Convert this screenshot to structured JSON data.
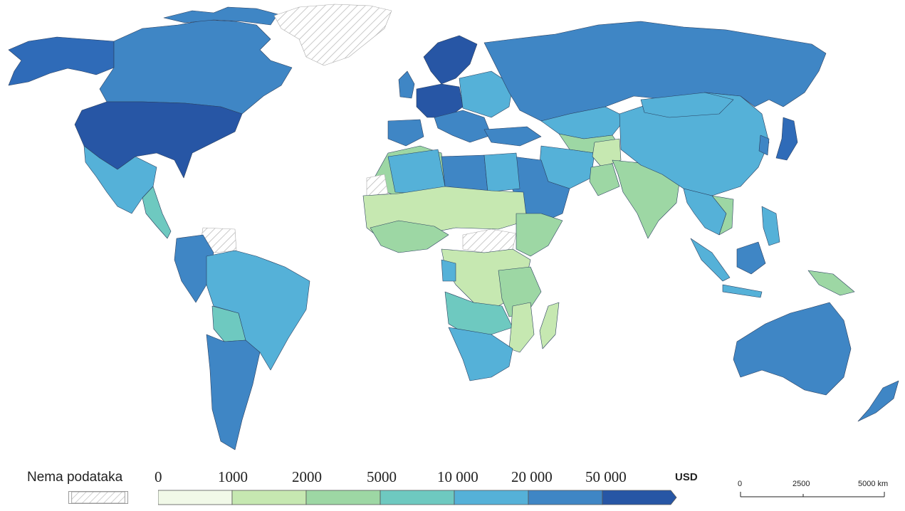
{
  "legend": {
    "nodata_label": "Nema podataka",
    "unit": "USD",
    "ticks": [
      "0",
      "1000",
      "2000",
      "5000",
      "10 000",
      "20 000",
      "50 000"
    ],
    "bins": [
      {
        "label": "0–1000",
        "color": "#f1f9e8"
      },
      {
        "label": "1000–2000",
        "color": "#c6e8b1"
      },
      {
        "label": "2000–5000",
        "color": "#9dd7a4"
      },
      {
        "label": "5000–10 000",
        "color": "#6ec9c0"
      },
      {
        "label": "10 000–20 000",
        "color": "#55b1d8"
      },
      {
        "label": "20 000–50 000",
        "color": "#3f86c5"
      },
      {
        "label": "> 50 000",
        "color": "#2756a5"
      }
    ],
    "nodata_style": "diagonal-hatch"
  },
  "scale": {
    "labels": [
      "0",
      "2500",
      "5000 km"
    ]
  }
}
